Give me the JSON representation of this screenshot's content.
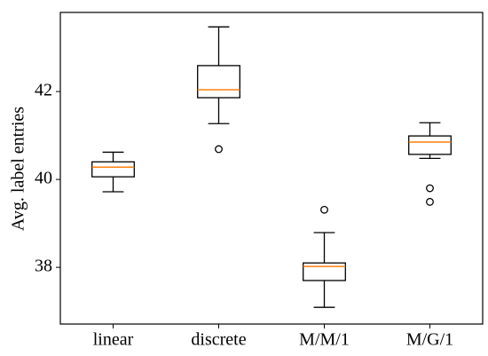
{
  "chart_data": {
    "type": "box",
    "ylabel": "Avg. label entries",
    "categories": [
      "linear",
      "discrete",
      "M/M/1",
      "M/G/1"
    ],
    "boxes": [
      {
        "whislo": 39.72,
        "q1": 40.06,
        "med": 40.28,
        "q3": 40.4,
        "whishi": 40.62
      },
      {
        "whislo": 41.27,
        "q1": 41.86,
        "med": 42.04,
        "q3": 42.59,
        "whishi": 43.47,
        "fliers": [
          40.69
        ]
      },
      {
        "whislo": 37.09,
        "q1": 37.7,
        "med": 38.02,
        "q3": 38.1,
        "whishi": 38.79,
        "fliers": [
          39.31
        ]
      },
      {
        "whislo": 40.48,
        "q1": 40.57,
        "med": 40.85,
        "q3": 40.99,
        "whishi": 41.29,
        "fliers": [
          39.8,
          39.49
        ]
      }
    ],
    "box_color": "#000000",
    "median_color": "#ff7f0e",
    "ylim": [
      36.71,
      43.8
    ],
    "yticks": [
      38,
      40,
      42
    ],
    "grid": false
  }
}
